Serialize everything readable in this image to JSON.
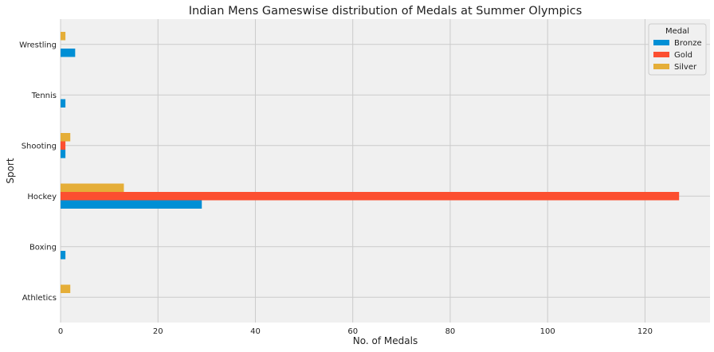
{
  "chart_data": {
    "type": "bar",
    "orientation": "horizontal",
    "title": "Indian Mens Gameswise distribution of Medals at Summer Olympics",
    "xlabel": "No. of Medals",
    "ylabel": "Sport",
    "categories": [
      "Athletics",
      "Boxing",
      "Hockey",
      "Shooting",
      "Tennis",
      "Wrestling"
    ],
    "series": [
      {
        "name": "Bronze",
        "color": "#008fd5",
        "values": [
          0,
          1,
          29,
          1,
          1,
          3
        ]
      },
      {
        "name": "Gold",
        "color": "#fc4f30",
        "values": [
          0,
          0,
          127,
          1,
          0,
          0
        ]
      },
      {
        "name": "Silver",
        "color": "#e5ae38",
        "values": [
          2,
          0,
          13,
          2,
          0,
          1
        ]
      }
    ],
    "xlim": [
      0,
      133.35
    ],
    "xticks": [
      0,
      20,
      40,
      60,
      80,
      100,
      120
    ],
    "grid": true,
    "legend": {
      "title": "Medal",
      "placement": "top-right"
    },
    "plot_background": "#f0f0f0",
    "grid_color": "#cbcbcb"
  }
}
